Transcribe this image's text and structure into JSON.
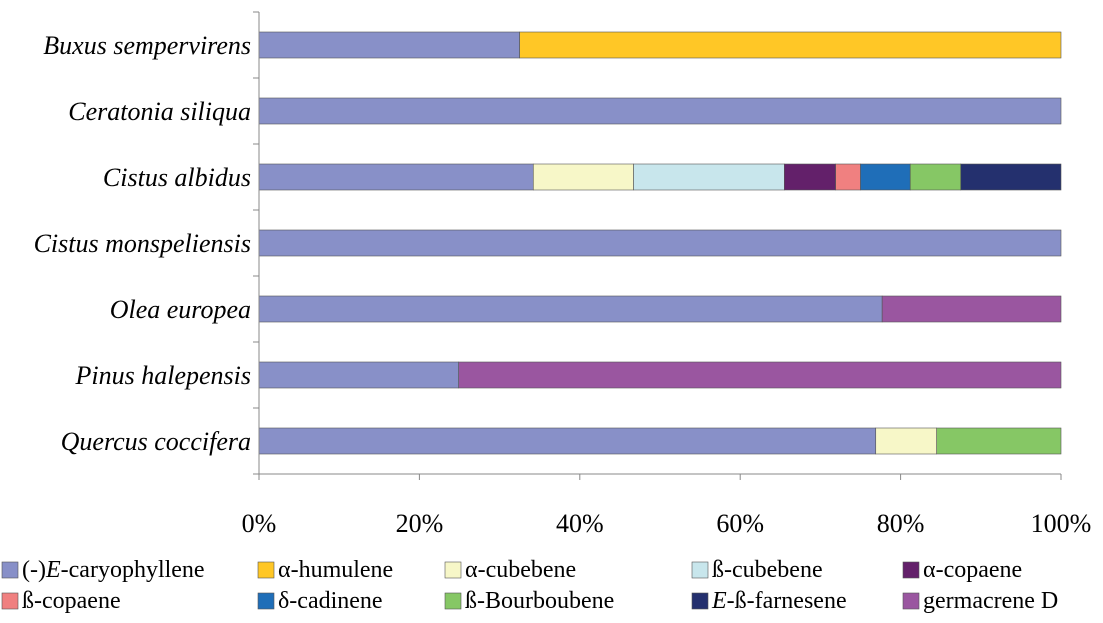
{
  "chart_data": {
    "type": "bar",
    "stacked": true,
    "orientation": "horizontal",
    "normalized_percent": true,
    "categories": [
      "Buxus sempervirens",
      "Ceratonia siliqua",
      "Cistus albidus",
      "Cistus monspeliensis",
      "Olea europea",
      "Pinus halepensis",
      "Quercus coccifera"
    ],
    "series": [
      {
        "name": "(-)E-caryophyllene",
        "name_prefix": "(-)",
        "name_em": "E",
        "name_suffix": "-caryophyllene",
        "color": "#8890C8",
        "values": [
          32.5,
          100,
          34.2,
          100,
          77.7,
          24.9,
          76.9
        ]
      },
      {
        "name": "α-humulene",
        "color": "#FFC726",
        "values": [
          67.5,
          0,
          0,
          0,
          0,
          0,
          0
        ]
      },
      {
        "name": "α-cubebene",
        "color": "#F7F7C8",
        "values": [
          0,
          0,
          12.5,
          0,
          0,
          0,
          7.6
        ]
      },
      {
        "name": "ß-cubebene",
        "color": "#C8E6EC",
        "values": [
          0,
          0,
          18.8,
          0,
          0,
          0,
          0
        ]
      },
      {
        "name": "α-copaene",
        "color": "#63206A",
        "values": [
          0,
          0,
          6.4,
          0,
          0,
          0,
          0
        ]
      },
      {
        "name": "ß-copaene",
        "color": "#F08080",
        "values": [
          0,
          0,
          3.1,
          0,
          0,
          0,
          0
        ]
      },
      {
        "name": "δ-cadinene",
        "color": "#1F6EB8",
        "values": [
          0,
          0,
          6.2,
          0,
          0,
          0,
          0
        ]
      },
      {
        "name": "ß-Bourboubene",
        "color": "#86C765",
        "values": [
          0,
          0,
          6.3,
          0,
          0,
          0,
          15.5
        ]
      },
      {
        "name": "E-ß-farnesene",
        "name_prefix": "",
        "name_em": "E",
        "name_suffix": "-ß-farnesene",
        "color": "#24306E",
        "values": [
          0,
          0,
          12.5,
          0,
          0,
          0,
          0
        ]
      },
      {
        "name": "germacrene D",
        "color": "#9A56A0",
        "values": [
          0,
          0,
          0,
          0,
          22.3,
          75.1,
          0
        ]
      }
    ],
    "x_ticks": [
      "0%",
      "20%",
      "40%",
      "60%",
      "80%",
      "100%"
    ],
    "xlim": [
      0,
      100
    ],
    "grid": false,
    "legend_position": "bottom"
  }
}
